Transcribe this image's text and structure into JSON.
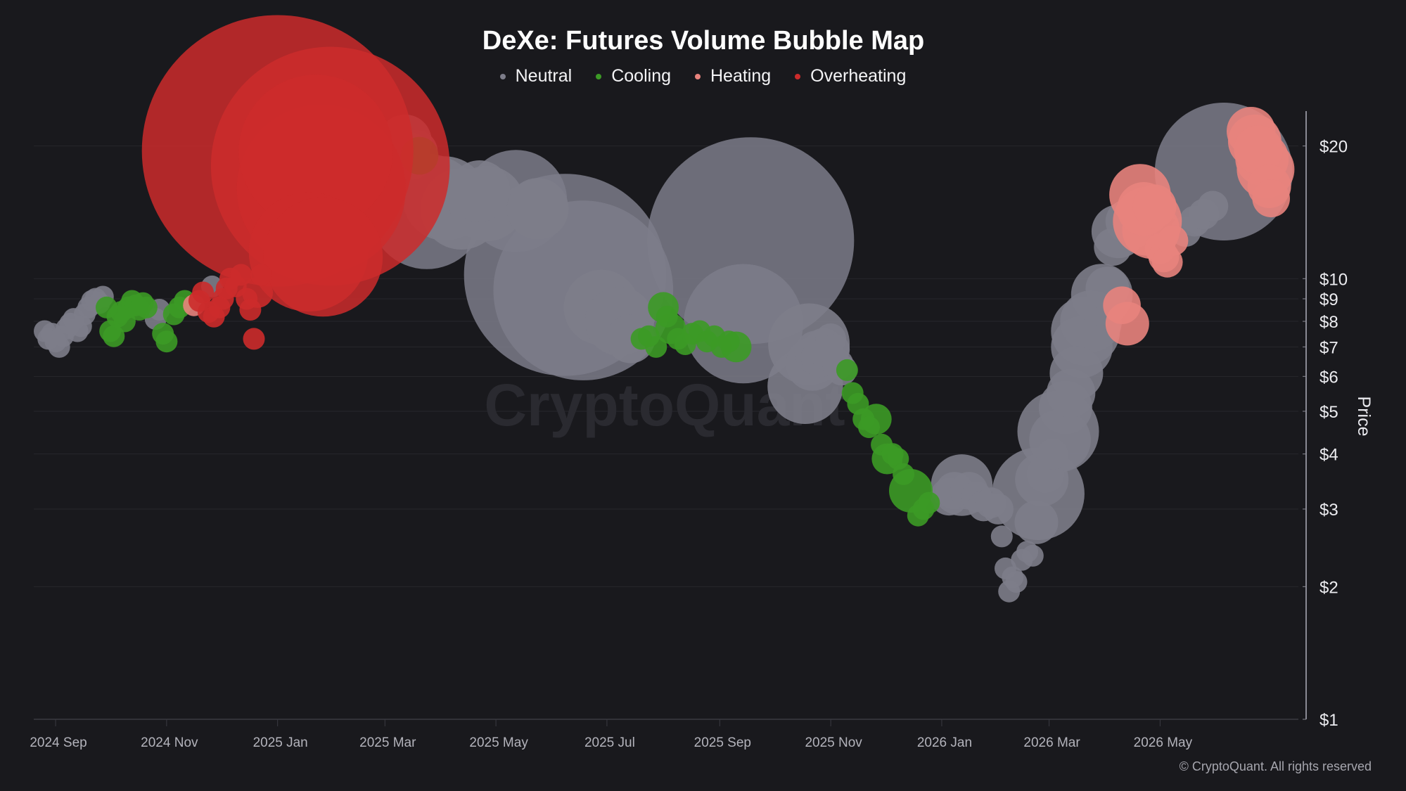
{
  "chart_data": {
    "type": "scatter",
    "title": "DeXe: Futures Volume Bubble Map",
    "ylabel": "Price",
    "y_scale": "log",
    "ylim": [
      1,
      24
    ],
    "xlim": [
      "2024-08-20",
      "2026-07-16"
    ],
    "x_ticks": [
      {
        "date": "2024-09-01",
        "label": "2024 Sep"
      },
      {
        "date": "2024-11-01",
        "label": "2024 Nov"
      },
      {
        "date": "2025-01-01",
        "label": "2025 Jan"
      },
      {
        "date": "2025-03-01",
        "label": "2025 Mar"
      },
      {
        "date": "2025-05-01",
        "label": "2025 May"
      },
      {
        "date": "2025-07-01",
        "label": "2025 Jul"
      },
      {
        "date": "2025-09-01",
        "label": "2025 Sep"
      },
      {
        "date": "2025-11-01",
        "label": "2025 Nov"
      },
      {
        "date": "2026-01-01",
        "label": "2026 Jan"
      },
      {
        "date": "2026-03-01",
        "label": "2026 Mar"
      },
      {
        "date": "2026-05-01",
        "label": "2026 May"
      }
    ],
    "y_ticks": [
      {
        "value": 1,
        "label": "$1"
      },
      {
        "value": 2,
        "label": "$2"
      },
      {
        "value": 3,
        "label": "$3"
      },
      {
        "value": 4,
        "label": "$4"
      },
      {
        "value": 5,
        "label": "$5"
      },
      {
        "value": 6,
        "label": "$6"
      },
      {
        "value": 7,
        "label": "$7"
      },
      {
        "value": 8,
        "label": "$8"
      },
      {
        "value": 9,
        "label": "$9"
      },
      {
        "value": 10,
        "label": "$10"
      },
      {
        "value": 20,
        "label": "$20"
      }
    ],
    "grid": true,
    "legend_position": "top-center",
    "watermark": "CryptoQuant",
    "copyright": "© CryptoQuant. All rights reserved",
    "bubble_size_note": "relative futures volume",
    "series": [
      {
        "name": "Neutral",
        "color": "#7d7d8a",
        "points": [
          {
            "x": "2024-08-26",
            "y": 7.6,
            "v": 1
          },
          {
            "x": "2024-08-28",
            "y": 7.3,
            "v": 1
          },
          {
            "x": "2024-08-30",
            "y": 7.5,
            "v": 1
          },
          {
            "x": "2024-09-01",
            "y": 7.2,
            "v": 1
          },
          {
            "x": "2024-09-03",
            "y": 7.0,
            "v": 1
          },
          {
            "x": "2024-09-05",
            "y": 7.4,
            "v": 1
          },
          {
            "x": "2024-09-07",
            "y": 7.7,
            "v": 1
          },
          {
            "x": "2024-09-09",
            "y": 7.9,
            "v": 1
          },
          {
            "x": "2024-09-11",
            "y": 8.1,
            "v": 1
          },
          {
            "x": "2024-09-13",
            "y": 7.6,
            "v": 1
          },
          {
            "x": "2024-09-15",
            "y": 7.8,
            "v": 1
          },
          {
            "x": "2024-09-17",
            "y": 8.3,
            "v": 1
          },
          {
            "x": "2024-09-19",
            "y": 8.6,
            "v": 1
          },
          {
            "x": "2024-09-21",
            "y": 8.9,
            "v": 1
          },
          {
            "x": "2024-09-23",
            "y": 9.0,
            "v": 1
          },
          {
            "x": "2024-09-25",
            "y": 8.8,
            "v": 1
          },
          {
            "x": "2024-09-27",
            "y": 9.1,
            "v": 1
          },
          {
            "x": "2024-10-26",
            "y": 8.1,
            "v": 1
          },
          {
            "x": "2024-10-28",
            "y": 8.5,
            "v": 1
          },
          {
            "x": "2024-11-26",
            "y": 9.6,
            "v": 1
          },
          {
            "x": "2025-03-12",
            "y": 20.5,
            "v": 6
          },
          {
            "x": "2025-03-14",
            "y": 19.2,
            "v": 4
          },
          {
            "x": "2025-03-16",
            "y": 18.5,
            "v": 3
          },
          {
            "x": "2025-03-18",
            "y": 19.4,
            "v": 4
          },
          {
            "x": "2025-03-24",
            "y": 14.2,
            "v": 28
          },
          {
            "x": "2025-04-03",
            "y": 15.2,
            "v": 15
          },
          {
            "x": "2025-04-12",
            "y": 14.4,
            "v": 14
          },
          {
            "x": "2025-04-22",
            "y": 15.8,
            "v": 8
          },
          {
            "x": "2025-04-26",
            "y": 14.8,
            "v": 12
          },
          {
            "x": "2025-05-12",
            "y": 15.0,
            "v": 22
          },
          {
            "x": "2025-05-24",
            "y": 14.4,
            "v": 8
          },
          {
            "x": "2025-06-08",
            "y": 10.2,
            "v": 86
          },
          {
            "x": "2025-06-18",
            "y": 9.4,
            "v": 68
          },
          {
            "x": "2025-06-28",
            "y": 8.6,
            "v": 12
          },
          {
            "x": "2025-07-08",
            "y": 8.0,
            "v": 10
          },
          {
            "x": "2025-07-14",
            "y": 7.3,
            "v": 5
          },
          {
            "x": "2025-09-18",
            "y": 12.2,
            "v": 90
          },
          {
            "x": "2025-09-14",
            "y": 7.9,
            "v": 30
          },
          {
            "x": "2025-10-20",
            "y": 7.1,
            "v": 14
          },
          {
            "x": "2025-10-22",
            "y": 6.4,
            "v": 6
          },
          {
            "x": "2025-10-24",
            "y": 6.8,
            "v": 4
          },
          {
            "x": "2025-10-26",
            "y": 6.6,
            "v": 3
          },
          {
            "x": "2025-10-28",
            "y": 7.0,
            "v": 3
          },
          {
            "x": "2025-10-30",
            "y": 6.7,
            "v": 2
          },
          {
            "x": "2025-11-01",
            "y": 7.3,
            "v": 2
          },
          {
            "x": "2025-11-03",
            "y": 6.9,
            "v": 2
          },
          {
            "x": "2025-11-05",
            "y": 6.4,
            "v": 2
          },
          {
            "x": "2025-11-07",
            "y": 6.2,
            "v": 2
          },
          {
            "x": "2025-10-18",
            "y": 5.7,
            "v": 12
          },
          {
            "x": "2026-01-05",
            "y": 3.2,
            "v": 3
          },
          {
            "x": "2026-01-08",
            "y": 3.3,
            "v": 3
          },
          {
            "x": "2026-01-12",
            "y": 3.4,
            "v": 8
          },
          {
            "x": "2026-01-16",
            "y": 3.3,
            "v": 3
          },
          {
            "x": "2026-01-20",
            "y": 3.2,
            "v": 2
          },
          {
            "x": "2026-01-24",
            "y": 3.05,
            "v": 2
          },
          {
            "x": "2026-01-28",
            "y": 3.1,
            "v": 2
          },
          {
            "x": "2026-02-01",
            "y": 3.0,
            "v": 2
          },
          {
            "x": "2026-02-03",
            "y": 2.6,
            "v": 1
          },
          {
            "x": "2026-02-05",
            "y": 2.2,
            "v": 1
          },
          {
            "x": "2026-02-07",
            "y": 1.95,
            "v": 1
          },
          {
            "x": "2026-02-09",
            "y": 2.1,
            "v": 1
          },
          {
            "x": "2026-02-11",
            "y": 2.05,
            "v": 1
          },
          {
            "x": "2026-02-14",
            "y": 2.3,
            "v": 1
          },
          {
            "x": "2026-02-17",
            "y": 2.4,
            "v": 1
          },
          {
            "x": "2026-02-20",
            "y": 2.35,
            "v": 1
          },
          {
            "x": "2026-02-22",
            "y": 2.8,
            "v": 4
          },
          {
            "x": "2026-02-23",
            "y": 3.25,
            "v": 18
          },
          {
            "x": "2026-02-25",
            "y": 3.5,
            "v": 6
          },
          {
            "x": "2026-02-27",
            "y": 3.6,
            "v": 3
          },
          {
            "x": "2026-03-03",
            "y": 4.0,
            "v": 2
          },
          {
            "x": "2026-03-06",
            "y": 4.5,
            "v": 14
          },
          {
            "x": "2026-03-07",
            "y": 4.3,
            "v": 8
          },
          {
            "x": "2026-03-10",
            "y": 5.1,
            "v": 6
          },
          {
            "x": "2026-03-13",
            "y": 5.5,
            "v": 5
          },
          {
            "x": "2026-03-16",
            "y": 6.1,
            "v": 6
          },
          {
            "x": "2026-03-19",
            "y": 7.0,
            "v": 8
          },
          {
            "x": "2026-03-21",
            "y": 7.6,
            "v": 10
          },
          {
            "x": "2026-03-24",
            "y": 8.0,
            "v": 8
          },
          {
            "x": "2026-03-30",
            "y": 9.2,
            "v": 8
          },
          {
            "x": "2026-04-02",
            "y": 9.5,
            "v": 4
          },
          {
            "x": "2026-04-05",
            "y": 11.8,
            "v": 3
          },
          {
            "x": "2026-04-08",
            "y": 12.8,
            "v": 6
          },
          {
            "x": "2026-04-13",
            "y": 13.5,
            "v": 4
          },
          {
            "x": "2026-04-18",
            "y": 13.2,
            "v": 4
          },
          {
            "x": "2026-05-15",
            "y": 12.8,
            "v": 2
          },
          {
            "x": "2026-05-20",
            "y": 13.5,
            "v": 2
          },
          {
            "x": "2026-05-25",
            "y": 14.0,
            "v": 2
          },
          {
            "x": "2026-05-30",
            "y": 14.6,
            "v": 2
          },
          {
            "x": "2026-06-05",
            "y": 17.5,
            "v": 40
          }
        ]
      },
      {
        "name": "Cooling",
        "color": "#3c9a26",
        "points": [
          {
            "x": "2024-09-29",
            "y": 8.6,
            "v": 1
          },
          {
            "x": "2024-10-01",
            "y": 7.6,
            "v": 1
          },
          {
            "x": "2024-10-03",
            "y": 7.4,
            "v": 1
          },
          {
            "x": "2024-10-05",
            "y": 8.2,
            "v": 1
          },
          {
            "x": "2024-10-07",
            "y": 8.4,
            "v": 1
          },
          {
            "x": "2024-10-09",
            "y": 8.0,
            "v": 1
          },
          {
            "x": "2024-10-11",
            "y": 8.6,
            "v": 1
          },
          {
            "x": "2024-10-13",
            "y": 8.9,
            "v": 1
          },
          {
            "x": "2024-10-15",
            "y": 8.7,
            "v": 1
          },
          {
            "x": "2024-10-17",
            "y": 8.5,
            "v": 1
          },
          {
            "x": "2024-10-19",
            "y": 8.8,
            "v": 1
          },
          {
            "x": "2024-10-21",
            "y": 8.6,
            "v": 1
          },
          {
            "x": "2024-10-30",
            "y": 7.5,
            "v": 1
          },
          {
            "x": "2024-11-01",
            "y": 7.2,
            "v": 1
          },
          {
            "x": "2024-11-05",
            "y": 8.3,
            "v": 1
          },
          {
            "x": "2024-11-08",
            "y": 8.6,
            "v": 1
          },
          {
            "x": "2024-11-11",
            "y": 8.9,
            "v": 1
          },
          {
            "x": "2025-03-20",
            "y": 19.0,
            "v": 3
          },
          {
            "x": "2025-07-20",
            "y": 7.3,
            "v": 1
          },
          {
            "x": "2025-07-24",
            "y": 7.4,
            "v": 1
          },
          {
            "x": "2025-07-28",
            "y": 7.0,
            "v": 1
          },
          {
            "x": "2025-08-01",
            "y": 8.6,
            "v": 2
          },
          {
            "x": "2025-08-03",
            "y": 8.2,
            "v": 1
          },
          {
            "x": "2025-08-05",
            "y": 7.7,
            "v": 2
          },
          {
            "x": "2025-08-09",
            "y": 7.3,
            "v": 1
          },
          {
            "x": "2025-08-13",
            "y": 7.1,
            "v": 1
          },
          {
            "x": "2025-08-17",
            "y": 7.5,
            "v": 1
          },
          {
            "x": "2025-08-21",
            "y": 7.6,
            "v": 1
          },
          {
            "x": "2025-08-25",
            "y": 7.2,
            "v": 1
          },
          {
            "x": "2025-08-29",
            "y": 7.4,
            "v": 1
          },
          {
            "x": "2025-09-02",
            "y": 7.0,
            "v": 1
          },
          {
            "x": "2025-09-06",
            "y": 7.2,
            "v": 1
          },
          {
            "x": "2025-09-10",
            "y": 7.0,
            "v": 2
          },
          {
            "x": "2025-11-10",
            "y": 6.2,
            "v": 1
          },
          {
            "x": "2025-11-13",
            "y": 5.5,
            "v": 1
          },
          {
            "x": "2025-11-16",
            "y": 5.2,
            "v": 1
          },
          {
            "x": "2025-11-19",
            "y": 4.8,
            "v": 1
          },
          {
            "x": "2025-11-22",
            "y": 4.6,
            "v": 1
          },
          {
            "x": "2025-11-26",
            "y": 4.8,
            "v": 2
          },
          {
            "x": "2025-11-29",
            "y": 4.2,
            "v": 1
          },
          {
            "x": "2025-12-02",
            "y": 3.9,
            "v": 2
          },
          {
            "x": "2025-12-05",
            "y": 4.0,
            "v": 1
          },
          {
            "x": "2025-12-08",
            "y": 3.9,
            "v": 1
          },
          {
            "x": "2025-12-11",
            "y": 3.6,
            "v": 1
          },
          {
            "x": "2025-12-15",
            "y": 3.3,
            "v": 4
          },
          {
            "x": "2025-12-19",
            "y": 2.9,
            "v": 1
          },
          {
            "x": "2025-12-22",
            "y": 3.0,
            "v": 1
          },
          {
            "x": "2025-12-25",
            "y": 3.1,
            "v": 1
          }
        ]
      },
      {
        "name": "Heating",
        "color": "#e8837d",
        "points": [
          {
            "x": "2024-11-16",
            "y": 8.7,
            "v": 1
          },
          {
            "x": "2026-04-10",
            "y": 8.7,
            "v": 3
          },
          {
            "x": "2026-04-13",
            "y": 7.9,
            "v": 4
          },
          {
            "x": "2026-04-20",
            "y": 15.5,
            "v": 8
          },
          {
            "x": "2026-04-22",
            "y": 14.4,
            "v": 6
          },
          {
            "x": "2026-04-24",
            "y": 13.5,
            "v": 10
          },
          {
            "x": "2026-04-26",
            "y": 12.9,
            "v": 7
          },
          {
            "x": "2026-04-28",
            "y": 14.6,
            "v": 4
          },
          {
            "x": "2026-05-01",
            "y": 11.7,
            "v": 2
          },
          {
            "x": "2026-05-03",
            "y": 11.2,
            "v": 2
          },
          {
            "x": "2026-05-05",
            "y": 10.9,
            "v": 2
          },
          {
            "x": "2026-05-08",
            "y": 12.2,
            "v": 2
          },
          {
            "x": "2026-06-20",
            "y": 21.6,
            "v": 5
          },
          {
            "x": "2026-06-22",
            "y": 20.5,
            "v": 6
          },
          {
            "x": "2026-06-24",
            "y": 19.6,
            "v": 5
          },
          {
            "x": "2026-06-26",
            "y": 18.7,
            "v": 6
          },
          {
            "x": "2026-06-28",
            "y": 17.7,
            "v": 7
          },
          {
            "x": "2026-06-30",
            "y": 16.2,
            "v": 4
          },
          {
            "x": "2026-07-01",
            "y": 15.2,
            "v": 3
          }
        ]
      },
      {
        "name": "Overheating",
        "color": "#cc2b2b",
        "points": [
          {
            "x": "2024-11-19",
            "y": 8.9,
            "v": 1
          },
          {
            "x": "2024-11-21",
            "y": 9.3,
            "v": 1
          },
          {
            "x": "2024-11-24",
            "y": 8.4,
            "v": 1
          },
          {
            "x": "2024-11-27",
            "y": 8.2,
            "v": 1
          },
          {
            "x": "2024-11-30",
            "y": 8.6,
            "v": 1
          },
          {
            "x": "2024-12-02",
            "y": 9.0,
            "v": 1
          },
          {
            "x": "2024-12-04",
            "y": 9.5,
            "v": 1
          },
          {
            "x": "2024-12-06",
            "y": 10.0,
            "v": 1
          },
          {
            "x": "2024-12-09",
            "y": 9.6,
            "v": 1
          },
          {
            "x": "2024-12-12",
            "y": 10.2,
            "v": 1
          },
          {
            "x": "2024-12-15",
            "y": 9.0,
            "v": 1
          },
          {
            "x": "2024-12-17",
            "y": 8.5,
            "v": 1
          },
          {
            "x": "2024-12-19",
            "y": 7.3,
            "v": 1
          },
          {
            "x": "2024-12-21",
            "y": 9.3,
            "v": 2
          },
          {
            "x": "2024-12-23",
            "y": 10.2,
            "v": 1
          },
          {
            "x": "2025-01-01",
            "y": 19.5,
            "v": 155
          },
          {
            "x": "2025-01-30",
            "y": 18.0,
            "v": 120
          },
          {
            "x": "2025-01-25",
            "y": 16.0,
            "v": 60
          },
          {
            "x": "2025-01-22",
            "y": 19.4,
            "v": 50
          },
          {
            "x": "2025-01-18",
            "y": 11.5,
            "v": 30
          },
          {
            "x": "2025-01-26",
            "y": 11.2,
            "v": 30
          }
        ]
      }
    ]
  }
}
